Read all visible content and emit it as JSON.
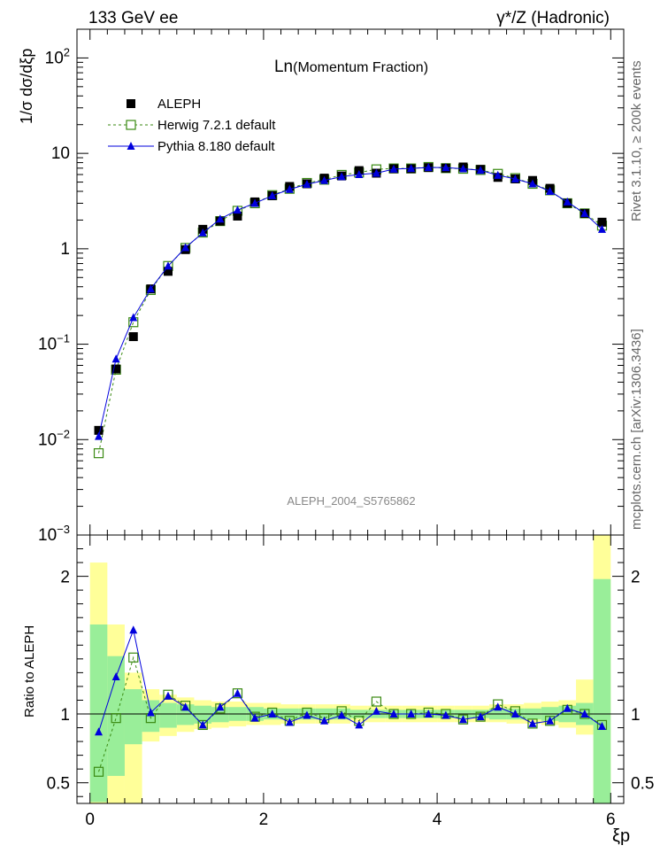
{
  "header": {
    "left": "133 GeV ee",
    "right": "γ*/Z (Hadronic)"
  },
  "side_labels": {
    "rivet": "Rivet 3.1.10, ≥ 200k events",
    "source": "mcplots.cern.ch [arXiv:1306.3436]"
  },
  "chart_data": [
    {
      "type": "scatter",
      "panel": "main",
      "title_main": "Ln",
      "title_sub": "(Momentum Fraction)",
      "ylabel": "1/σ dσ/dξp",
      "yscale": "log",
      "ylim": [
        0.001,
        200
      ],
      "xlim": [
        -0.15,
        6.15
      ],
      "ytick_labels": [
        {
          "value": 0.001,
          "base": "10",
          "exp": "−3"
        },
        {
          "value": 0.01,
          "base": "10",
          "exp": "−2"
        },
        {
          "value": 0.1,
          "base": "10",
          "exp": "−1"
        },
        {
          "value": 1,
          "base": "1",
          "exp": ""
        },
        {
          "value": 10,
          "base": "10",
          "exp": ""
        },
        {
          "value": 100,
          "base": "10",
          "exp": "2"
        }
      ],
      "watermark": "ALEPH_2004_S5765862",
      "legend_position": "top-left",
      "x": [
        0.1,
        0.3,
        0.5,
        0.7,
        0.9,
        1.1,
        1.3,
        1.5,
        1.7,
        1.9,
        2.1,
        2.3,
        2.5,
        2.7,
        2.9,
        3.1,
        3.3,
        3.5,
        3.7,
        3.9,
        4.1,
        4.3,
        4.5,
        4.7,
        4.9,
        5.1,
        5.3,
        5.5,
        5.7,
        5.9
      ],
      "series": [
        {
          "name": "ALEPH",
          "marker": "filled-square",
          "color": "#000000",
          "values": [
            0.0125,
            0.055,
            0.12,
            0.38,
            0.58,
            0.98,
            1.6,
            1.95,
            2.2,
            3.1,
            3.6,
            4.5,
            4.8,
            5.5,
            5.8,
            6.6,
            6.2,
            6.9,
            6.9,
            7.1,
            7.0,
            7.2,
            6.8,
            5.6,
            5.4,
            5.2,
            4.3,
            3.0,
            2.35,
            1.9
          ]
        },
        {
          "name": "Herwig 7.2.1 default",
          "marker": "open-square",
          "line": "dashed",
          "color": "#3a8a12",
          "values": [
            0.0072,
            0.054,
            0.17,
            0.37,
            0.66,
            1.02,
            1.48,
            1.95,
            2.5,
            3.0,
            3.65,
            4.25,
            4.9,
            5.3,
            5.95,
            6.3,
            6.8,
            6.95,
            6.95,
            7.2,
            7.0,
            6.9,
            6.7,
            6.1,
            5.5,
            4.8,
            4.1,
            3.0,
            2.35,
            1.75
          ]
        },
        {
          "name": "Pythia 8.180 default",
          "marker": "filled-triangle",
          "line": "solid",
          "color": "#0000dd",
          "values": [
            0.0108,
            0.07,
            0.19,
            0.38,
            0.66,
            1.03,
            1.47,
            2.05,
            2.55,
            3.0,
            3.6,
            4.2,
            4.75,
            5.2,
            5.7,
            6.0,
            6.2,
            6.85,
            6.95,
            7.1,
            7.1,
            6.9,
            6.65,
            5.9,
            5.4,
            4.8,
            4.0,
            3.1,
            2.35,
            1.6
          ]
        }
      ]
    },
    {
      "type": "scatter",
      "panel": "ratio",
      "ylabel": "Ratio to ALEPH",
      "ylim": [
        0.35,
        2.3
      ],
      "xlim": [
        -0.15,
        6.15
      ],
      "yticks": [
        0.5,
        1,
        2
      ],
      "ytick_labels": [
        "0.5",
        "1",
        "2"
      ],
      "xticks": [
        0,
        2,
        4,
        6
      ],
      "xtick_labels": [
        "0",
        "2",
        "4",
        "6"
      ],
      "xlabel": "ξp",
      "x": [
        0.1,
        0.3,
        0.5,
        0.7,
        0.9,
        1.1,
        1.3,
        1.5,
        1.7,
        1.9,
        2.1,
        2.3,
        2.5,
        2.7,
        2.9,
        3.1,
        3.3,
        3.5,
        3.7,
        3.9,
        4.1,
        4.3,
        4.5,
        4.7,
        4.9,
        5.1,
        5.3,
        5.5,
        5.7,
        5.9
      ],
      "bands": {
        "outer": {
          "color": "#ffff99",
          "lo": [
            0.3,
            0.3,
            0.3,
            0.8,
            0.84,
            0.87,
            0.89,
            0.9,
            0.91,
            0.92,
            0.92,
            0.93,
            0.93,
            0.93,
            0.93,
            0.94,
            0.94,
            0.94,
            0.94,
            0.94,
            0.94,
            0.94,
            0.94,
            0.94,
            0.93,
            0.93,
            0.92,
            0.9,
            0.85,
            0.3
          ],
          "hi": [
            2.1,
            1.65,
            1.3,
            1.18,
            1.14,
            1.12,
            1.1,
            1.09,
            1.09,
            1.08,
            1.08,
            1.07,
            1.07,
            1.07,
            1.07,
            1.06,
            1.06,
            1.06,
            1.06,
            1.06,
            1.06,
            1.06,
            1.06,
            1.07,
            1.07,
            1.08,
            1.09,
            1.1,
            1.25,
            2.3
          ]
        },
        "inner": {
          "color": "#99ee99",
          "lo": [
            0.36,
            0.55,
            0.78,
            0.87,
            0.9,
            0.92,
            0.93,
            0.94,
            0.95,
            0.95,
            0.96,
            0.96,
            0.96,
            0.96,
            0.96,
            0.97,
            0.97,
            0.97,
            0.97,
            0.97,
            0.97,
            0.97,
            0.97,
            0.96,
            0.96,
            0.96,
            0.95,
            0.94,
            0.92,
            0.3
          ],
          "hi": [
            1.65,
            1.42,
            1.18,
            1.1,
            1.08,
            1.07,
            1.06,
            1.05,
            1.05,
            1.05,
            1.04,
            1.04,
            1.04,
            1.04,
            1.04,
            1.03,
            1.03,
            1.03,
            1.03,
            1.03,
            1.03,
            1.03,
            1.03,
            1.04,
            1.04,
            1.04,
            1.05,
            1.06,
            1.08,
            1.98
          ]
        }
      },
      "series": [
        {
          "name": "Herwig 7.2.1 default",
          "marker": "open-square",
          "line": "dashed",
          "color": "#3a8a12",
          "values": [
            0.58,
            0.97,
            1.41,
            0.97,
            1.14,
            1.06,
            0.92,
            1.04,
            1.15,
            0.98,
            1.01,
            0.95,
            1.01,
            0.97,
            1.02,
            0.95,
            1.09,
            1.0,
            1.0,
            1.01,
            1.0,
            0.96,
            0.98,
            1.07,
            1.02,
            0.93,
            0.95,
            1.03,
            1.0,
            0.92
          ]
        },
        {
          "name": "Pythia 8.180 default",
          "marker": "filled-triangle",
          "line": "solid",
          "color": "#0000dd",
          "values": [
            0.87,
            1.27,
            1.61,
            1.01,
            1.13,
            1.05,
            0.92,
            1.05,
            1.15,
            0.97,
            1.0,
            0.94,
            0.99,
            0.95,
            0.99,
            0.92,
            1.02,
            1.0,
            1.0,
            1.0,
            0.99,
            0.96,
            0.98,
            1.05,
            1.0,
            0.93,
            0.95,
            1.04,
            1.0,
            0.91
          ]
        }
      ]
    }
  ]
}
